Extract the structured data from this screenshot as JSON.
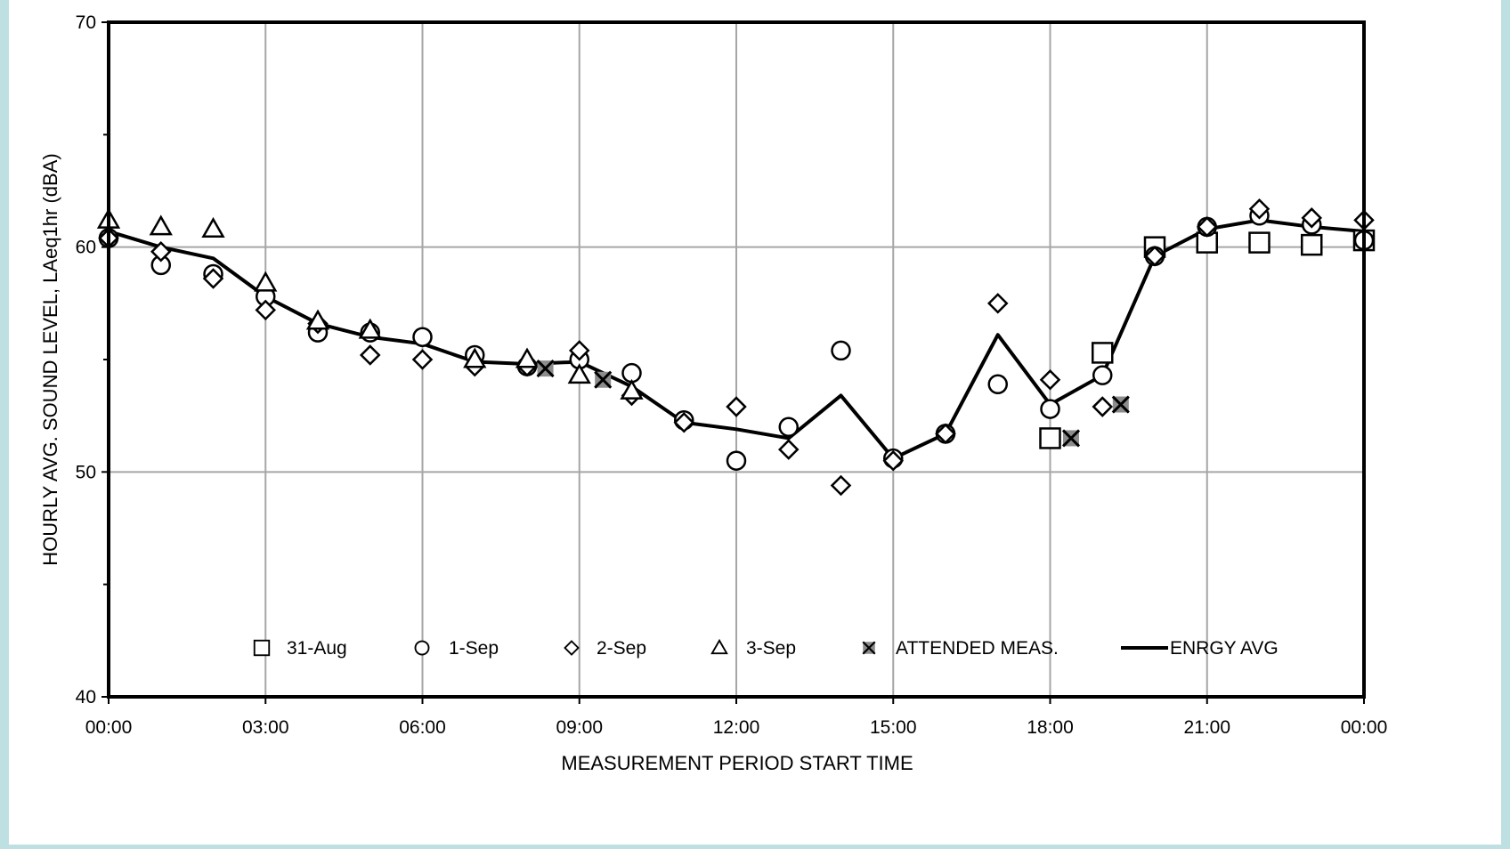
{
  "chart_data": {
    "type": "scatter",
    "xlabel": "MEASUREMENT PERIOD START TIME",
    "ylabel": "HOURLY AVG. SOUND LEVEL, LAeq1hr  (dBA)",
    "xlim": [
      0,
      24
    ],
    "ylim": [
      40,
      70
    ],
    "x_ticks": [
      0,
      3,
      6,
      9,
      12,
      15,
      18,
      21,
      24
    ],
    "x_tick_labels": [
      "00:00",
      "03:00",
      "06:00",
      "09:00",
      "12:00",
      "15:00",
      "18:00",
      "21:00",
      "00:00"
    ],
    "y_ticks": [
      40,
      50,
      60,
      70
    ],
    "y_tick_labels": [
      "40",
      "50",
      "60",
      "70"
    ],
    "y_minor_ticks": [
      45,
      55,
      65
    ],
    "grid": true,
    "legend_position": "bottom",
    "series": [
      {
        "name": "31-Aug",
        "marker": "square",
        "points": [
          [
            18,
            51.5
          ],
          [
            19,
            55.3
          ],
          [
            20,
            60.0
          ],
          [
            21,
            60.2
          ],
          [
            22,
            60.2
          ],
          [
            23,
            60.1
          ],
          [
            24,
            60.3
          ]
        ]
      },
      {
        "name": "1-Sep",
        "marker": "circle",
        "points": [
          [
            0,
            60.4
          ],
          [
            1,
            59.2
          ],
          [
            2,
            58.8
          ],
          [
            3,
            57.8
          ],
          [
            4,
            56.2
          ],
          [
            5,
            56.2
          ],
          [
            6,
            56.0
          ],
          [
            7,
            55.2
          ],
          [
            8,
            54.7
          ],
          [
            9,
            55.0
          ],
          [
            10,
            54.4
          ],
          [
            11,
            52.3
          ],
          [
            12,
            50.5
          ],
          [
            13,
            52.0
          ],
          [
            14,
            55.4
          ],
          [
            15,
            50.6
          ],
          [
            16,
            51.7
          ],
          [
            17,
            53.9
          ],
          [
            18,
            52.8
          ],
          [
            19,
            54.3
          ],
          [
            20,
            59.6
          ],
          [
            21,
            60.9
          ],
          [
            22,
            61.4
          ],
          [
            23,
            61.0
          ],
          [
            24,
            60.3
          ]
        ]
      },
      {
        "name": "2-Sep",
        "marker": "diamond",
        "points": [
          [
            0,
            60.4
          ],
          [
            1,
            59.8
          ],
          [
            2,
            58.6
          ],
          [
            3,
            57.2
          ],
          [
            4,
            56.6
          ],
          [
            5,
            55.2
          ],
          [
            6,
            55.0
          ],
          [
            7,
            54.7
          ],
          [
            8,
            54.7
          ],
          [
            9,
            55.4
          ],
          [
            10,
            53.4
          ],
          [
            11,
            52.2
          ],
          [
            12,
            52.9
          ],
          [
            13,
            51.0
          ],
          [
            14,
            49.4
          ],
          [
            15,
            50.5
          ],
          [
            16,
            51.7
          ],
          [
            17,
            57.5
          ],
          [
            18,
            54.1
          ],
          [
            19,
            52.9
          ],
          [
            20,
            59.6
          ],
          [
            21,
            60.9
          ],
          [
            22,
            61.7
          ],
          [
            23,
            61.3
          ],
          [
            24,
            61.2
          ]
        ]
      },
      {
        "name": "3-Sep",
        "marker": "triangle",
        "points": [
          [
            0,
            61.2
          ],
          [
            1,
            60.9
          ],
          [
            2,
            60.8
          ],
          [
            3,
            58.4
          ],
          [
            4,
            56.7
          ],
          [
            5,
            56.3
          ],
          [
            7,
            55.0
          ],
          [
            8,
            55.0
          ],
          [
            9,
            54.3
          ],
          [
            10,
            53.6
          ]
        ]
      },
      {
        "name": "ATTENDED MEAS.",
        "marker": "x",
        "points": [
          [
            8.35,
            54.6
          ],
          [
            9.45,
            54.1
          ],
          [
            18.4,
            51.5
          ],
          [
            19.35,
            53.0
          ]
        ]
      },
      {
        "name": "ENRGY AVG",
        "marker": "line",
        "points": [
          [
            0,
            60.7
          ],
          [
            1,
            60.0
          ],
          [
            2,
            59.5
          ],
          [
            3,
            57.8
          ],
          [
            4,
            56.6
          ],
          [
            5,
            56.0
          ],
          [
            6,
            55.7
          ],
          [
            7,
            54.9
          ],
          [
            8,
            54.8
          ],
          [
            9,
            54.9
          ],
          [
            10,
            53.8
          ],
          [
            11,
            52.2
          ],
          [
            12,
            51.9
          ],
          [
            13,
            51.5
          ],
          [
            14,
            53.4
          ],
          [
            15,
            50.6
          ],
          [
            16,
            51.7
          ],
          [
            17,
            56.1
          ],
          [
            18,
            53.0
          ],
          [
            19,
            54.3
          ],
          [
            20,
            59.6
          ],
          [
            21,
            60.8
          ],
          [
            22,
            61.2
          ],
          [
            23,
            60.9
          ],
          [
            24,
            60.7
          ]
        ]
      }
    ]
  }
}
